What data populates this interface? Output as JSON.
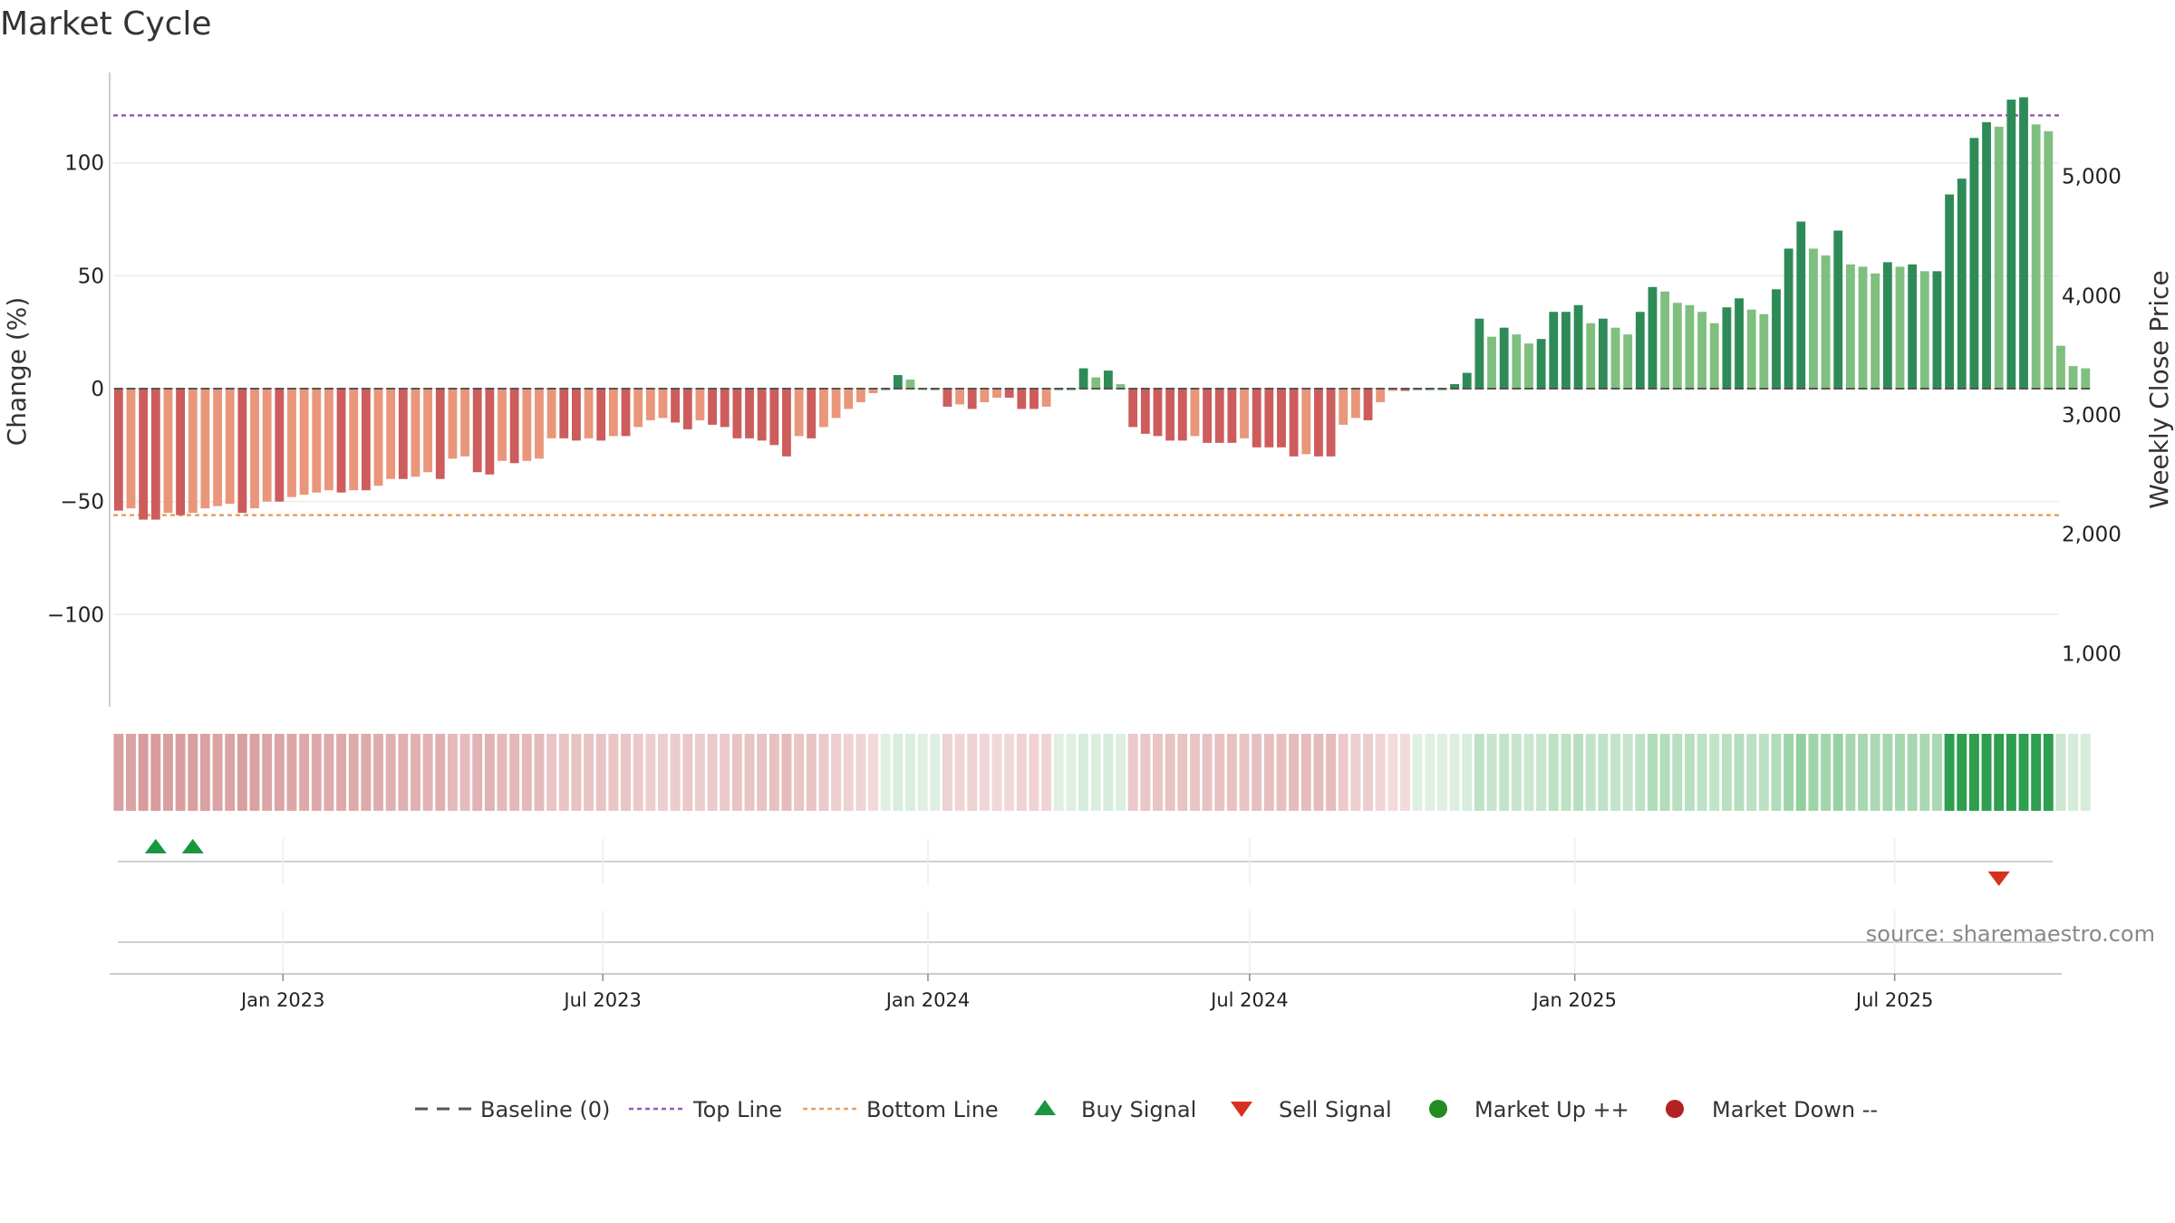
{
  "chart_data": {
    "type": "bar",
    "title": "Market Cycle",
    "ylabel": "Change (%)",
    "y2label": "Weekly Close Price",
    "ylim": [
      -140,
      140
    ],
    "y_ticks": [
      100,
      50,
      0,
      -50,
      -100
    ],
    "y_tick_labels": [
      "100",
      "50",
      "0",
      "−50",
      "−100"
    ],
    "y2lim": [
      570,
      5870
    ],
    "y2_ticks": [
      5000,
      4000,
      3000,
      2000,
      1000
    ],
    "y2_tick_labels": [
      "5,000",
      "4,000",
      "3,000",
      "2,000",
      "1,000"
    ],
    "top_line": 121,
    "bottom_line": -56,
    "x_start": "2022-09-30",
    "week_days": 7,
    "x_range": [
      "2022-09-27",
      "2025-10-02"
    ],
    "x_ticks": [
      "2023-01-01",
      "2023-07-01",
      "2024-01-01",
      "2024-07-01",
      "2025-01-01",
      "2025-07-01"
    ],
    "x_tick_labels": [
      "Jan 2023",
      "Jul 2023",
      "Jan 2024",
      "Jul 2024",
      "Jan 2025",
      "Jul 2025"
    ],
    "values": [
      -54,
      -53,
      -58,
      -58,
      -55,
      -56,
      -55,
      -53,
      -52,
      -51,
      -55,
      -53,
      -50,
      -50,
      -48,
      -47,
      -46,
      -45,
      -46,
      -45,
      -45,
      -43,
      -40,
      -40,
      -39,
      -37,
      -40,
      -31,
      -30,
      -37,
      -38,
      -32,
      -33,
      -32,
      -31,
      -22,
      -22,
      -23,
      -22,
      -23,
      -21,
      -21,
      -17,
      -14,
      -13,
      -15,
      -18,
      -14,
      -16,
      -17,
      -22,
      -22,
      -23,
      -25,
      -30,
      -21,
      -22,
      -17,
      -13,
      -9,
      -6,
      -2,
      0,
      6,
      4,
      0,
      0,
      -8,
      -7,
      -9,
      -6,
      -4,
      -4,
      -9,
      -9,
      -8,
      0,
      0,
      9,
      5,
      8,
      2,
      -17,
      -20,
      -21,
      -23,
      -23,
      -21,
      -24,
      -24,
      -24,
      -22,
      -26,
      -26,
      -26,
      -30,
      -29,
      -30,
      -30,
      -16,
      -13,
      -14,
      -6,
      -1,
      -1,
      0,
      0,
      0,
      2,
      7,
      31,
      23,
      27,
      24,
      20,
      22,
      34,
      34,
      37,
      29,
      31,
      27,
      24,
      34,
      45,
      43,
      38,
      37,
      34,
      29,
      36,
      40,
      35,
      33,
      44,
      62,
      74,
      62,
      59,
      70,
      55,
      54,
      51,
      56,
      54,
      55,
      52,
      52,
      86,
      93,
      111,
      118,
      116,
      128,
      129,
      117,
      114,
      19,
      10,
      9
    ],
    "series": [
      {
        "name": "Baseline (0)"
      },
      {
        "name": "Top Line"
      },
      {
        "name": "Bottom Line"
      },
      {
        "name": "Buy Signal"
      },
      {
        "name": "Sell Signal"
      },
      {
        "name": "Market Up ++"
      },
      {
        "name": "Market Down --"
      }
    ],
    "buy_signals": [
      "2022-10-21",
      "2022-11-11"
    ],
    "sell_signals": [
      "2025-08-29"
    ],
    "colors": {
      "strong_up": "#2e8b57",
      "up": "#7fbf7f",
      "strong_down": "#cd5c5c",
      "down": "#e9967a",
      "top_line": "#9b59b6",
      "bottom_line": "#e8a060",
      "buy": "#1a9641",
      "sell": "#d7301f",
      "market_up": "#228b22",
      "market_down": "#b22222",
      "baseline": "#555555"
    },
    "source": "source: sharemaestro.com"
  }
}
